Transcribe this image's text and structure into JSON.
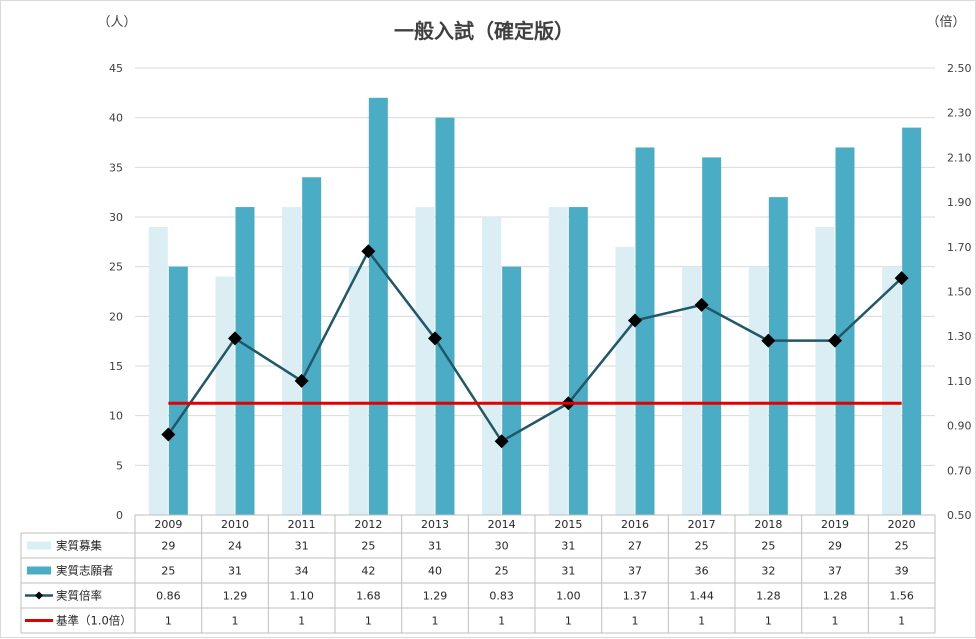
{
  "chart_data": {
    "type": "bar",
    "title": "一般入試（確定版）",
    "left_unit": "（人）",
    "right_unit": "（倍）",
    "categories": [
      "2009",
      "2010",
      "2011",
      "2012",
      "2013",
      "2014",
      "2015",
      "2016",
      "2017",
      "2018",
      "2019",
      "2020"
    ],
    "left_axis": {
      "min": 0,
      "max": 45,
      "step": 5,
      "ticks": [
        "0",
        "5",
        "10",
        "15",
        "20",
        "25",
        "30",
        "35",
        "40",
        "45"
      ]
    },
    "right_axis": {
      "min": 0.5,
      "max": 2.5,
      "step": 0.2,
      "ticks": [
        "0.50",
        "0.70",
        "0.90",
        "1.10",
        "1.30",
        "1.50",
        "1.70",
        "1.90",
        "2.10",
        "2.30",
        "2.50"
      ]
    },
    "grid": true,
    "series": [
      {
        "name": "実質募集",
        "kind": "bar",
        "axis": "left",
        "color": "#daeef3",
        "values": [
          29,
          24,
          31,
          25,
          31,
          30,
          31,
          27,
          25,
          25,
          29,
          25
        ],
        "labels": [
          "29",
          "24",
          "31",
          "25",
          "31",
          "30",
          "31",
          "27",
          "25",
          "25",
          "29",
          "25"
        ]
      },
      {
        "name": "実質志願者",
        "kind": "bar",
        "axis": "left",
        "color": "#4bacc6",
        "values": [
          25,
          31,
          34,
          42,
          40,
          25,
          31,
          37,
          36,
          32,
          37,
          39
        ],
        "labels": [
          "25",
          "31",
          "34",
          "42",
          "40",
          "25",
          "31",
          "37",
          "36",
          "32",
          "37",
          "39"
        ]
      },
      {
        "name": "実質倍率",
        "kind": "line",
        "axis": "right",
        "color": "#215867",
        "marker": "diamond",
        "values": [
          0.86,
          1.29,
          1.1,
          1.68,
          1.29,
          0.83,
          1.0,
          1.37,
          1.44,
          1.28,
          1.28,
          1.56
        ],
        "labels": [
          "0.86",
          "1.29",
          "1.10",
          "1.68",
          "1.29",
          "0.83",
          "1.00",
          "1.37",
          "1.44",
          "1.28",
          "1.28",
          "1.56"
        ]
      },
      {
        "name": "基準（1.0倍）",
        "kind": "line",
        "axis": "right",
        "color": "#e00000",
        "values": [
          1,
          1,
          1,
          1,
          1,
          1,
          1,
          1,
          1,
          1,
          1,
          1
        ],
        "labels": [
          "1",
          "1",
          "1",
          "1",
          "1",
          "1",
          "1",
          "1",
          "1",
          "1",
          "1",
          "1"
        ]
      }
    ]
  }
}
